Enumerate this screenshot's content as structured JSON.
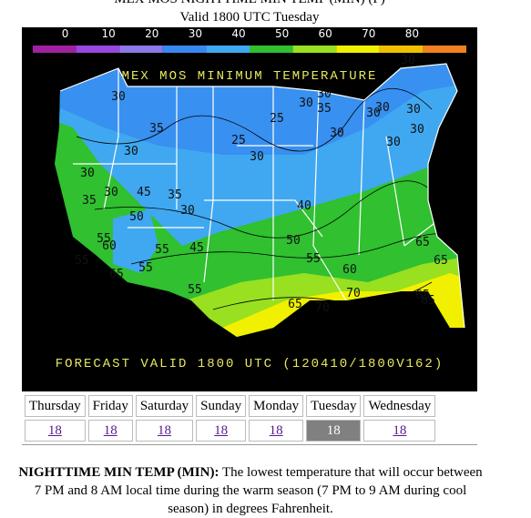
{
  "header": {
    "title": "MEX MOS NIGHTTIME MIN TEMP (MIN) (F)",
    "subtitle": "Valid 1800 UTC Tuesday"
  },
  "map": {
    "title": "MEX MOS MINIMUM TEMPERATURE",
    "footer": "FORECAST VALID 1800 UTC (120410/1800V162)",
    "scale_ticks": [
      0,
      10,
      20,
      30,
      40,
      50,
      60,
      70,
      80
    ],
    "contour_labels": [
      "30",
      "35",
      "25",
      "25",
      "30",
      "30",
      "30",
      "30",
      "30",
      "35",
      "30",
      "30",
      "30",
      "35",
      "30",
      "45",
      "35",
      "30",
      "55",
      "55",
      "55",
      "60",
      "50",
      "45",
      "40",
      "50",
      "55",
      "60",
      "65",
      "65",
      "55",
      "65",
      "55",
      "65",
      "70",
      "70",
      "65",
      "65",
      "30",
      "30",
      "30",
      "30"
    ]
  },
  "table": {
    "days": [
      "Thursday",
      "Friday",
      "Saturday",
      "Sunday",
      "Monday",
      "Tuesday",
      "Wednesday"
    ],
    "links": [
      "18",
      "18",
      "18",
      "18",
      "18",
      "18",
      "18"
    ],
    "selected": 5
  },
  "description": {
    "term": "NIGHTTIME MIN TEMP (MIN):",
    "text": "The lowest temperature that will occur between 7 PM and 8 AM local time during the warm season (7 PM to 9 AM during cool season) in degrees Fahrenheit."
  }
}
